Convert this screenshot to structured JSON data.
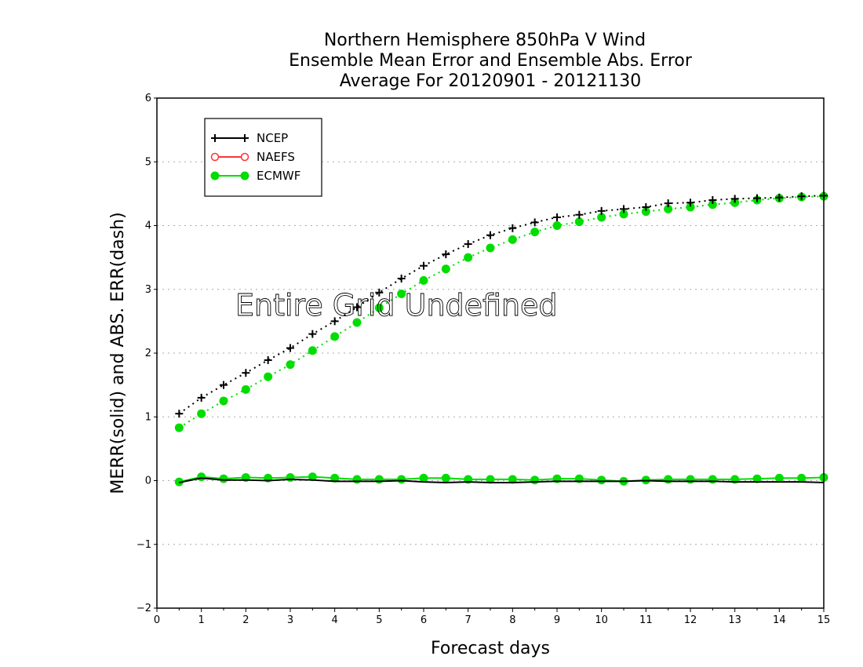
{
  "chart_data": {
    "type": "line",
    "title": [
      "Northern Hemisphere 850hPa V Wind",
      "Ensemble Mean Error and Ensemble Abs. Error",
      "Average For 20120901 - 20121130"
    ],
    "xlabel": "Forecast days",
    "ylabel": "MERR(solid) and ABS. ERR(dash)",
    "xlim": [
      0,
      15
    ],
    "ylim": [
      -2,
      6
    ],
    "xticks": [
      0,
      1,
      2,
      3,
      4,
      5,
      6,
      7,
      8,
      9,
      10,
      11,
      12,
      13,
      14,
      15
    ],
    "yticks": [
      -2,
      -1,
      0,
      1,
      2,
      3,
      4,
      5,
      6
    ],
    "grid": "horizontal dotted",
    "legend_position": "top-left",
    "annotation": "Entire Grid Undefined",
    "x": [
      0.5,
      1,
      1.5,
      2,
      2.5,
      3,
      3.5,
      4,
      4.5,
      5,
      5.5,
      6,
      6.5,
      7,
      7.5,
      8,
      8.5,
      9,
      9.5,
      10,
      10.5,
      11,
      11.5,
      12,
      12.5,
      13,
      13.5,
      14,
      14.5,
      15
    ],
    "series": [
      {
        "name": "NCEP",
        "color": "#000000",
        "marker": "plus",
        "mean_error": [
          -0.03,
          0.04,
          0.01,
          0.01,
          0.0,
          0.02,
          0.01,
          -0.01,
          -0.01,
          -0.01,
          0.0,
          -0.02,
          -0.03,
          -0.02,
          -0.03,
          -0.03,
          -0.02,
          -0.01,
          -0.01,
          -0.01,
          -0.01,
          0.0,
          -0.01,
          -0.01,
          -0.01,
          -0.02,
          -0.02,
          -0.02,
          -0.02,
          -0.03
        ],
        "abs_error": [
          1.05,
          1.3,
          1.5,
          1.69,
          1.89,
          2.08,
          2.3,
          2.5,
          2.72,
          2.95,
          3.17,
          3.37,
          3.55,
          3.71,
          3.85,
          3.96,
          4.05,
          4.13,
          4.17,
          4.23,
          4.26,
          4.29,
          4.35,
          4.36,
          4.4,
          4.42,
          4.43,
          4.44,
          4.46,
          4.47
        ]
      },
      {
        "name": "NAEFS",
        "color": "#ff3333",
        "marker": "open-circle",
        "mean_error": [],
        "abs_error": []
      },
      {
        "name": "ECMWF",
        "color": "#00dd00",
        "marker": "filled-circle",
        "mean_error": [
          -0.02,
          0.06,
          0.03,
          0.05,
          0.04,
          0.05,
          0.06,
          0.04,
          0.02,
          0.02,
          0.02,
          0.04,
          0.04,
          0.02,
          0.02,
          0.02,
          0.01,
          0.03,
          0.03,
          0.01,
          -0.01,
          0.01,
          0.02,
          0.02,
          0.02,
          0.02,
          0.03,
          0.04,
          0.04,
          0.05
        ],
        "abs_error": [
          0.83,
          1.05,
          1.25,
          1.43,
          1.63,
          1.82,
          2.04,
          2.26,
          2.48,
          2.71,
          2.93,
          3.14,
          3.32,
          3.5,
          3.65,
          3.78,
          3.9,
          4.0,
          4.06,
          4.13,
          4.18,
          4.22,
          4.26,
          4.29,
          4.33,
          4.36,
          4.4,
          4.43,
          4.45,
          4.46
        ]
      }
    ]
  }
}
